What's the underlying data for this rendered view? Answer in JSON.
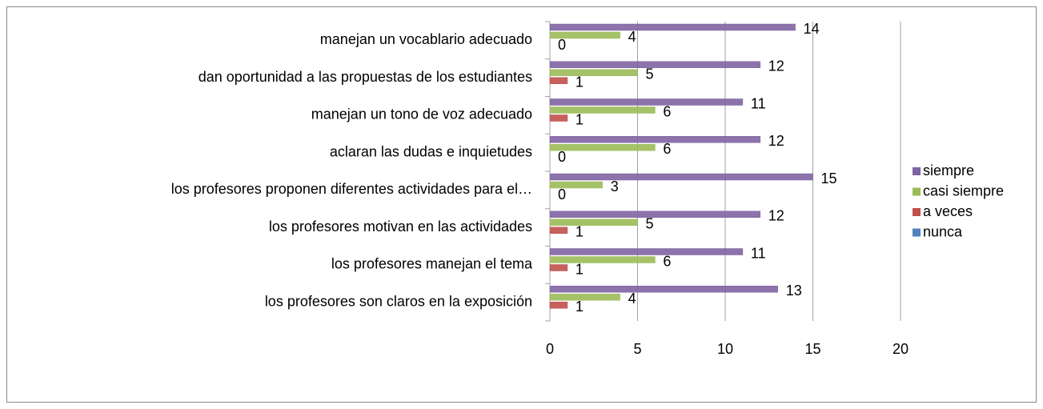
{
  "chart_data": {
    "type": "bar",
    "orientation": "horizontal",
    "categories": [
      "manejan un vocablario adecuado",
      "dan oportunidad a las propuestas de los estudiantes",
      "manejan un tono de voz adecuado",
      "aclaran las dudas e inquietudes",
      "los profesores proponen diferentes actividades para el…",
      "los profesores motivan en las actividades",
      "los profesores manejan el tema",
      "los profesores son claros en la exposición"
    ],
    "series": [
      {
        "name": "siempre",
        "color": "#8064a2",
        "values": [
          14,
          12,
          11,
          12,
          15,
          12,
          11,
          13
        ]
      },
      {
        "name": "casi siempre",
        "color": "#9bbb59",
        "values": [
          4,
          5,
          6,
          6,
          3,
          5,
          6,
          4
        ]
      },
      {
        "name": "a veces",
        "color": "#c0504d",
        "values": [
          0,
          1,
          1,
          0,
          0,
          1,
          1,
          1
        ]
      },
      {
        "name": "nunca",
        "color": "#4f81bd",
        "values": [
          null,
          null,
          null,
          null,
          null,
          null,
          null,
          null
        ]
      }
    ],
    "xlim": [
      0,
      20
    ],
    "xticks": [
      0,
      5,
      10,
      15,
      20
    ],
    "grid": true,
    "legend": "right"
  }
}
